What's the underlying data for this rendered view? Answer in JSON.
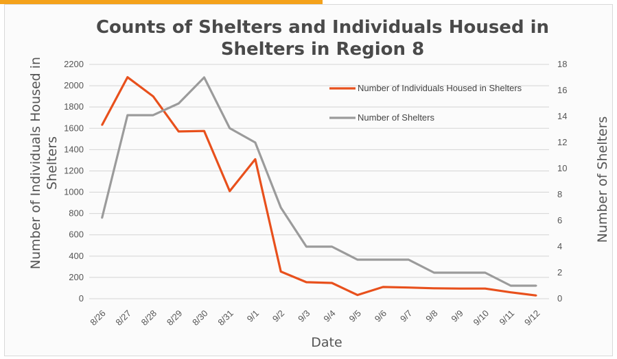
{
  "chart_data": {
    "type": "line",
    "title_lines": [
      "Counts of Shelters and Individuals Housed in",
      "Shelters in Region 8"
    ],
    "xlabel": "Date",
    "ylabel_left_lines": [
      "Number of Individuals Housed in",
      "Shelters"
    ],
    "ylabel_right": "Number of Shelters",
    "categories": [
      "8/26",
      "8/27",
      "8/28",
      "8/29",
      "8/30",
      "8/31",
      "9/1",
      "9/2",
      "9/3",
      "9/4",
      "9/5",
      "9/6",
      "9/7",
      "9/8",
      "9/9",
      "9/10",
      "9/11",
      "9/12"
    ],
    "ylim_left": [
      0,
      2200
    ],
    "yticks_left": [
      0,
      200,
      400,
      600,
      800,
      1000,
      1200,
      1400,
      1600,
      1800,
      2000,
      2200
    ],
    "ylim_right": [
      0,
      18
    ],
    "yticks_right": [
      0,
      2,
      4,
      6,
      8,
      10,
      12,
      14,
      16,
      18
    ],
    "grid": true,
    "legend_position": "top-right",
    "series": [
      {
        "name": "Number of Individuals Housed in Shelters",
        "axis": "left",
        "color": "#e8501c",
        "values": [
          1630,
          2080,
          1900,
          1570,
          1575,
          1010,
          1310,
          255,
          155,
          148,
          35,
          110,
          105,
          98,
          95,
          95,
          60,
          30
        ]
      },
      {
        "name": "Number of Shelters",
        "axis": "right",
        "color": "#9b9b9b",
        "values": [
          6.2,
          14.1,
          14.1,
          15.0,
          17.0,
          13.1,
          12.0,
          7.0,
          4.0,
          4.0,
          3.0,
          3.0,
          3.0,
          2.0,
          2.0,
          2.0,
          1.0,
          1.0
        ]
      }
    ]
  }
}
